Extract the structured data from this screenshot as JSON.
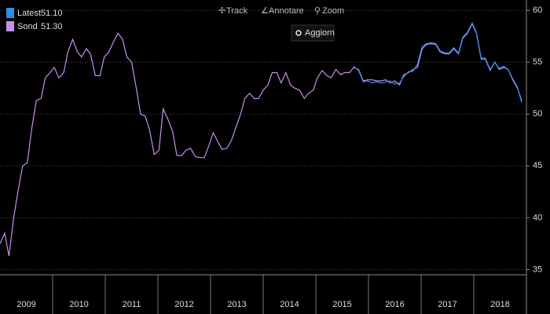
{
  "toolbar": {
    "items": [
      "Track",
      "Annotare",
      "Zoom"
    ],
    "button": "Aggiorn"
  },
  "chart_data": {
    "type": "line",
    "x": [
      2009.0,
      2009.09,
      2009.17,
      2009.26,
      2009.34,
      2009.43,
      2009.52,
      2009.6,
      2009.69,
      2009.78,
      2009.86,
      2009.95,
      2010.03,
      2010.12,
      2010.21,
      2010.29,
      2010.38,
      2010.47,
      2010.55,
      2010.64,
      2010.72,
      2010.81,
      2010.9,
      2010.98,
      2011.07,
      2011.16,
      2011.24,
      2011.33,
      2011.41,
      2011.5,
      2011.59,
      2011.67,
      2011.76,
      2011.84,
      2011.93,
      2012.02,
      2012.1,
      2012.19,
      2012.28,
      2012.36,
      2012.45,
      2012.53,
      2012.62,
      2012.71,
      2012.79,
      2012.88,
      2012.97,
      2013.05,
      2013.14,
      2013.22,
      2013.31,
      2013.4,
      2013.48,
      2013.57,
      2013.65,
      2013.74,
      2013.83,
      2013.91,
      2014.0,
      2014.09,
      2014.17,
      2014.26,
      2014.34,
      2014.43,
      2014.52,
      2014.6,
      2014.69,
      2014.78,
      2014.86,
      2014.95,
      2015.03,
      2015.12,
      2015.21,
      2015.29,
      2015.38,
      2015.47,
      2015.55,
      2015.64,
      2015.72,
      2015.81,
      2015.9,
      2015.98,
      2016.07,
      2016.15,
      2016.24,
      2016.33,
      2016.41,
      2016.5,
      2016.59,
      2016.67,
      2016.76,
      2016.84,
      2016.93,
      2017.02,
      2017.1,
      2017.19,
      2017.28,
      2017.36,
      2017.45,
      2017.53,
      2017.62,
      2017.71,
      2017.79,
      2017.88,
      2017.97,
      2018.05,
      2018.14,
      2018.22,
      2018.31,
      2018.4,
      2018.48,
      2018.57,
      2018.65,
      2018.74,
      2018.83,
      2018.91
    ],
    "series": [
      {
        "name": "Sond",
        "last_label": "51.30",
        "color": "#c58ff0",
        "values": [
          37.5,
          38.5,
          36.3,
          40,
          42.5,
          45,
          45.3,
          48.5,
          51.3,
          51.5,
          53.5,
          54,
          54.5,
          53.5,
          54,
          56,
          57.2,
          56,
          55.5,
          56.3,
          55.8,
          53.7,
          53.7,
          55.5,
          56,
          57,
          57.8,
          57.2,
          55.5,
          55,
          52.5,
          50,
          49.8,
          48.5,
          46.1,
          46.5,
          50.5,
          49.5,
          48.3,
          46,
          46,
          46.5,
          46.7,
          45.9,
          45.8,
          45.8,
          47,
          48.2,
          47.3,
          46.6,
          46.7,
          47.5,
          48.7,
          50,
          51.5,
          52,
          51.5,
          51.5,
          52.3,
          52.8,
          54,
          54,
          53,
          54,
          52.8,
          52.5,
          52.3,
          51.5,
          52,
          52.3,
          53.5,
          54.2,
          53.7,
          53.5,
          54.3,
          53.8,
          54,
          54,
          54.5,
          54.3,
          53.2,
          53.3,
          53.3,
          53.2,
          53.2,
          53.3,
          53,
          53.2,
          52.8,
          53.8,
          54,
          54.3,
          54.5,
          56.3,
          56.7,
          56.8,
          56.7,
          56,
          55.8,
          55.8,
          56.3,
          55.8,
          57.3,
          57.8,
          58.7,
          57.8,
          55.3,
          55.3,
          54.2,
          55,
          54.3,
          54.5,
          54.3,
          53.3,
          52.5,
          51.3
        ]
      },
      {
        "name": "Latest",
        "last_label": "51.10",
        "color": "#2f8fe8",
        "values": [
          null,
          null,
          null,
          null,
          null,
          null,
          null,
          null,
          null,
          null,
          null,
          null,
          null,
          null,
          null,
          null,
          null,
          null,
          null,
          null,
          null,
          null,
          null,
          null,
          null,
          null,
          null,
          null,
          null,
          null,
          null,
          null,
          null,
          null,
          null,
          null,
          null,
          null,
          null,
          null,
          null,
          null,
          null,
          null,
          null,
          null,
          null,
          null,
          null,
          null,
          null,
          null,
          null,
          null,
          null,
          null,
          null,
          null,
          null,
          null,
          null,
          null,
          null,
          null,
          null,
          null,
          null,
          null,
          null,
          null,
          null,
          null,
          null,
          null,
          null,
          null,
          null,
          null,
          54.6,
          54.2,
          53.1,
          53.2,
          53.0,
          53.1,
          53.0,
          53.1,
          53.2,
          52.9,
          53.0,
          53.6,
          54.1,
          54.1,
          54.8,
          56.5,
          56.8,
          56.9,
          56.8,
          56.1,
          55.9,
          55.9,
          56.4,
          55.9,
          57.4,
          57.9,
          58.8,
          57.9,
          55.4,
          55.4,
          54.3,
          55.0,
          54.4,
          54.6,
          54.3,
          53.4,
          52.6,
          51.1
        ]
      }
    ],
    "xlim": [
      2009,
      2019
    ],
    "xticks": [
      {
        "value": 2009.5,
        "label": "2009"
      },
      {
        "value": 2010.5,
        "label": "2010"
      },
      {
        "value": 2011.5,
        "label": "2011"
      },
      {
        "value": 2012.5,
        "label": "2012"
      },
      {
        "value": 2013.5,
        "label": "2013"
      },
      {
        "value": 2014.5,
        "label": "2014"
      },
      {
        "value": 2015.5,
        "label": "2015"
      },
      {
        "value": 2016.5,
        "label": "2016"
      },
      {
        "value": 2017.5,
        "label": "2017"
      },
      {
        "value": 2018.5,
        "label": "2018"
      }
    ],
    "ylim": [
      34.5,
      61
    ],
    "yticks": [
      35,
      40,
      45,
      50,
      55,
      60
    ],
    "grid": true
  }
}
